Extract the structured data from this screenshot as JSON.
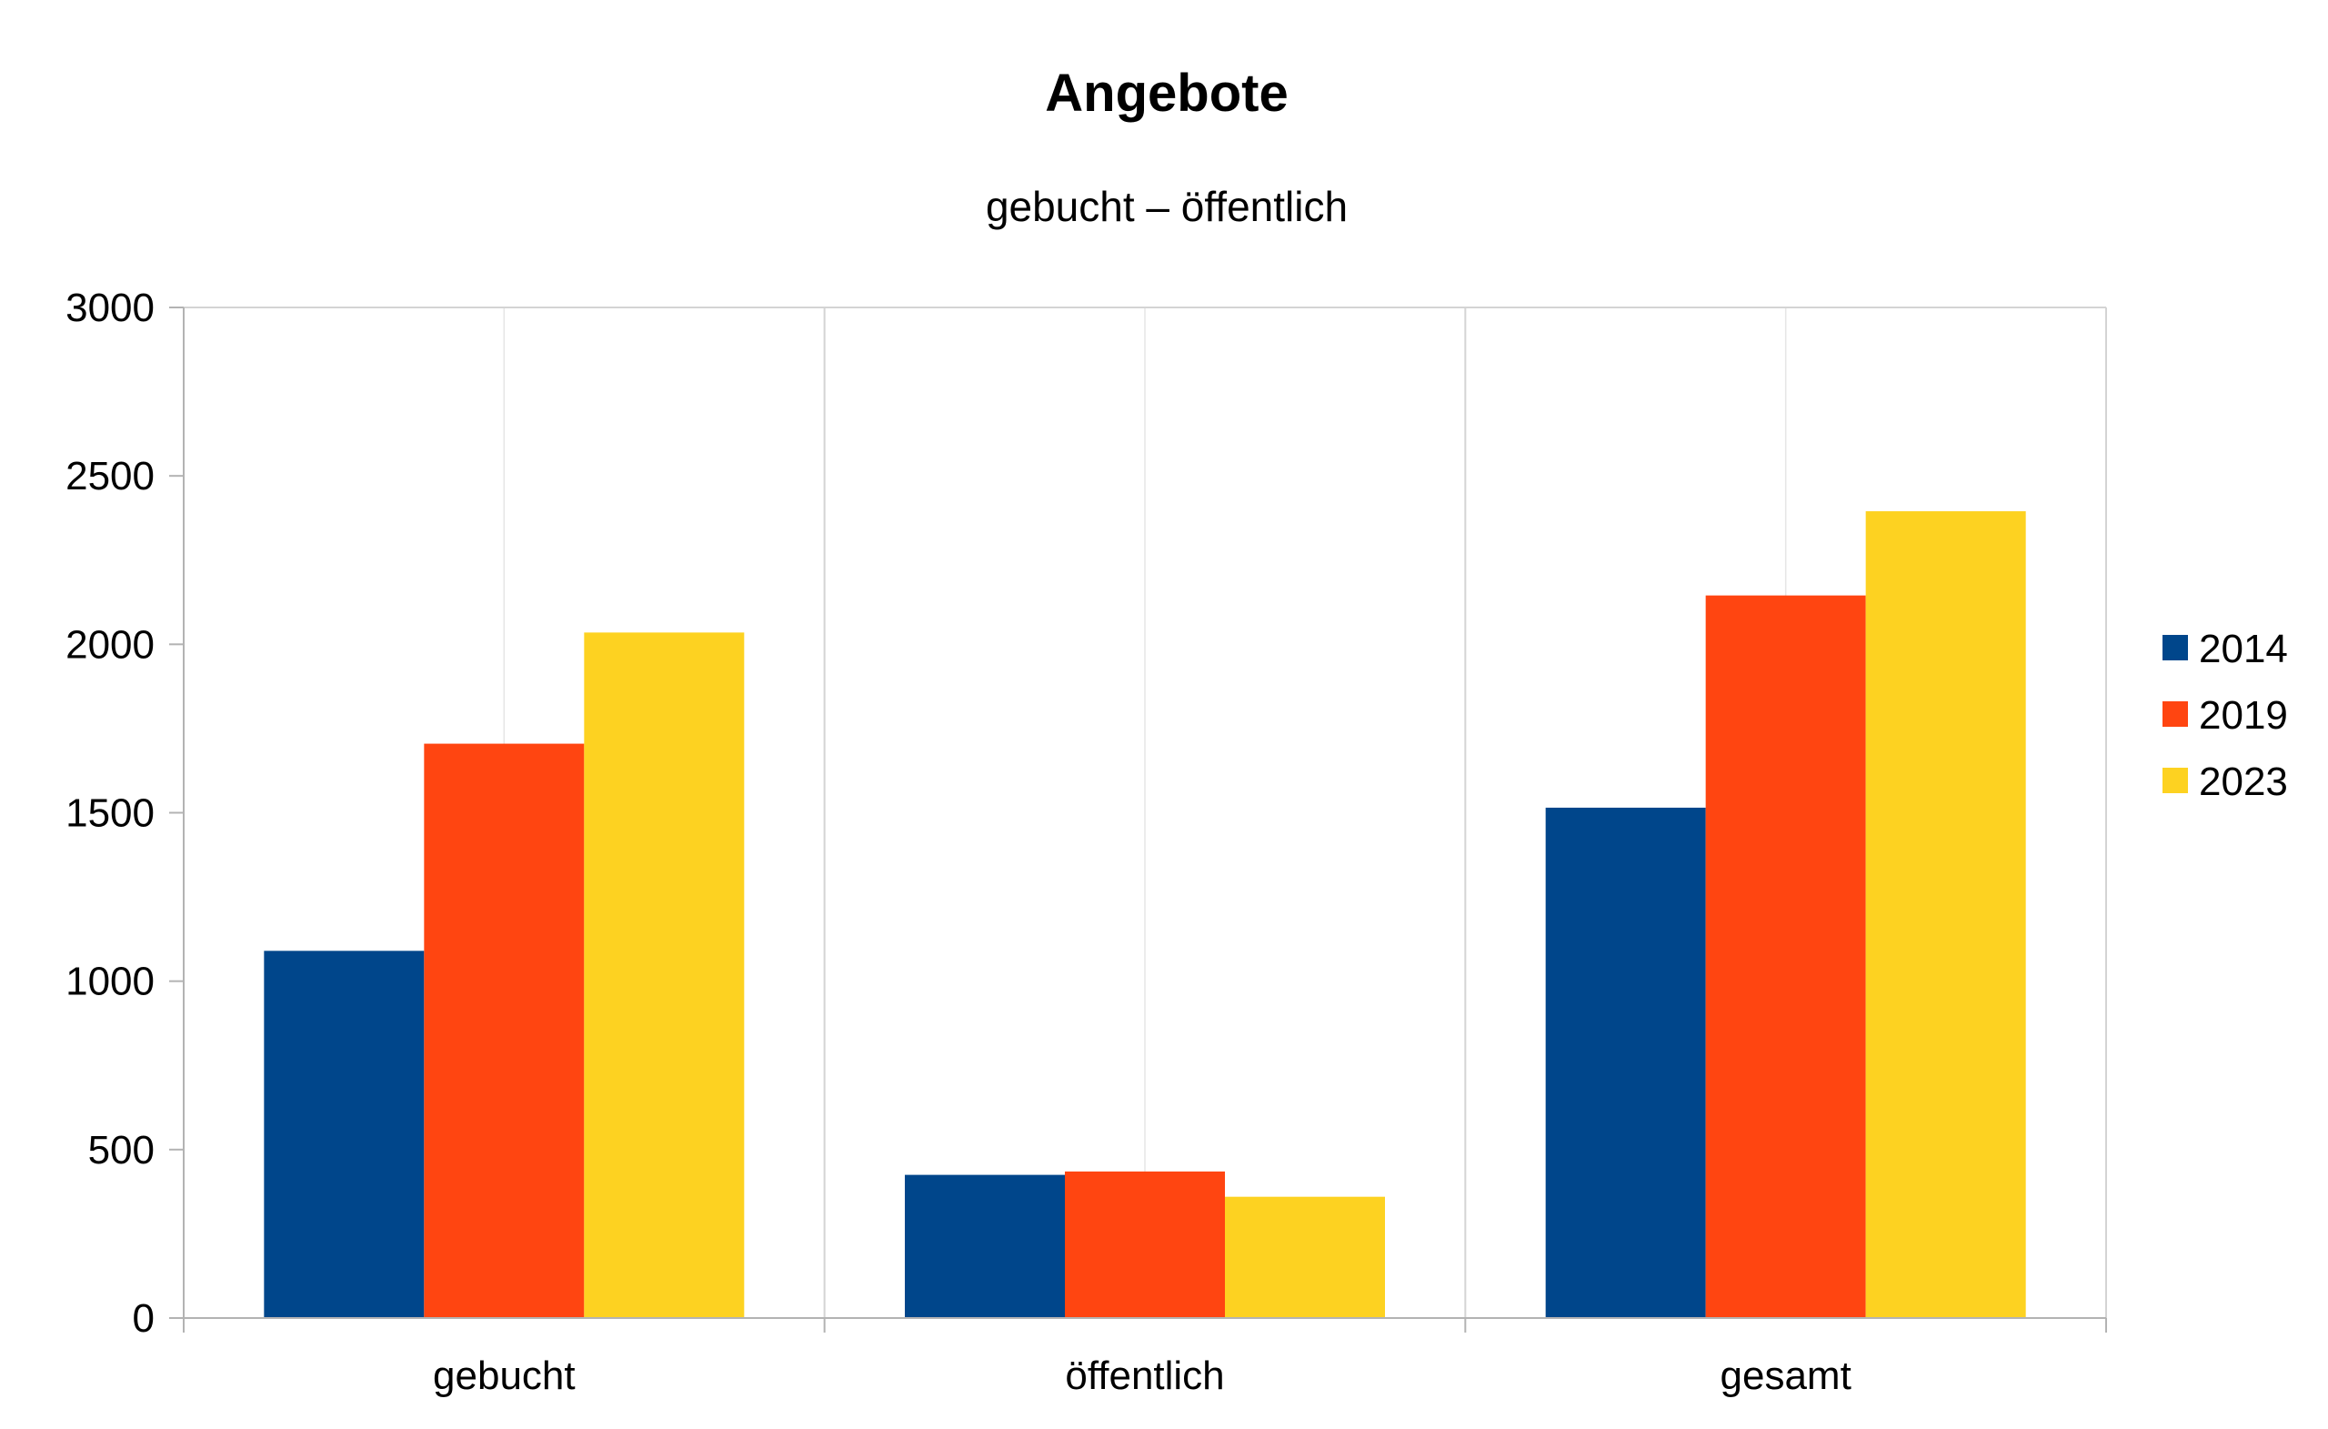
{
  "chart_data": {
    "type": "bar",
    "title": "Angebote",
    "subtitle": "gebucht – öffentlich",
    "xlabel": "",
    "ylabel": "",
    "categories": [
      "gebucht",
      "öffentlich",
      "gesamt"
    ],
    "series": [
      {
        "name": "2014",
        "color": "#00468b",
        "values": [
          1090,
          425,
          1515
        ]
      },
      {
        "name": "2019",
        "color": "#ff4511",
        "values": [
          1705,
          435,
          2145
        ]
      },
      {
        "name": "2023",
        "color": "#fdd221",
        "values": [
          2035,
          360,
          2395
        ]
      }
    ],
    "ylim": [
      0,
      3000
    ],
    "yticks": [
      "0",
      "500",
      "1000",
      "1500",
      "2000",
      "2500",
      "3000"
    ],
    "grid": true,
    "legend_position": "right"
  }
}
